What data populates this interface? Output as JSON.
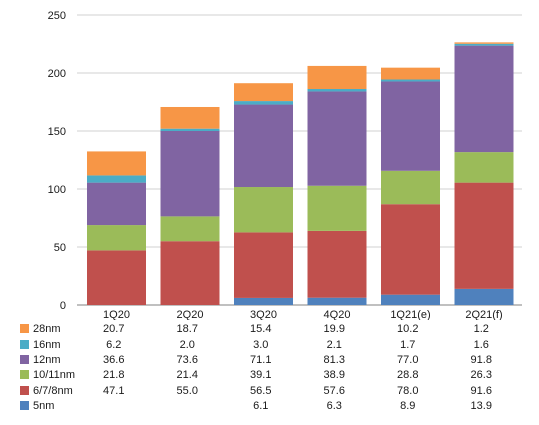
{
  "chart_data": {
    "type": "bar",
    "stacked": true,
    "categories": [
      "1Q20",
      "2Q20",
      "3Q20",
      "4Q20",
      "1Q21(e)",
      "2Q21(f)"
    ],
    "ylim": [
      0,
      250
    ],
    "yticks": [
      0,
      50,
      100,
      150,
      200,
      250
    ],
    "grid": true,
    "legend": "data table below chart",
    "series": [
      {
        "name": "5nm",
        "color": "#4f81bd",
        "values": [
          null,
          null,
          6.1,
          6.3,
          8.9,
          13.9
        ],
        "labels": [
          "",
          "",
          "6.1",
          "6.3",
          "8.9",
          "13.9"
        ]
      },
      {
        "name": "6/7/8nm",
        "color": "#c0504d",
        "values": [
          47.1,
          55.0,
          56.5,
          57.6,
          78.0,
          91.6
        ],
        "labels": [
          "47.1",
          "55.0",
          "56.5",
          "57.6",
          "78.0",
          "91.6"
        ]
      },
      {
        "name": "10/11nm",
        "color": "#9bbb59",
        "values": [
          21.8,
          21.4,
          39.1,
          38.9,
          28.8,
          26.3
        ],
        "labels": [
          "21.8",
          "21.4",
          "39.1",
          "38.9",
          "28.8",
          "26.3"
        ]
      },
      {
        "name": "12nm",
        "color": "#8064a2",
        "values": [
          36.6,
          73.6,
          71.1,
          81.3,
          77.0,
          91.8
        ],
        "labels": [
          "36.6",
          "73.6",
          "71.1",
          "81.3",
          "77.0",
          "91.8"
        ]
      },
      {
        "name": "16nm",
        "color": "#4bacc6",
        "values": [
          6.2,
          2.0,
          3.0,
          2.1,
          1.7,
          1.6
        ],
        "labels": [
          "6.2",
          "2.0",
          "3.0",
          "2.1",
          "1.7",
          "1.6"
        ]
      },
      {
        "name": "28nm",
        "color": "#f79646",
        "values": [
          20.7,
          18.7,
          15.4,
          19.9,
          10.2,
          1.2
        ],
        "labels": [
          "20.7",
          "18.7",
          "15.4",
          "19.9",
          "10.2",
          "1.2"
        ]
      }
    ]
  }
}
